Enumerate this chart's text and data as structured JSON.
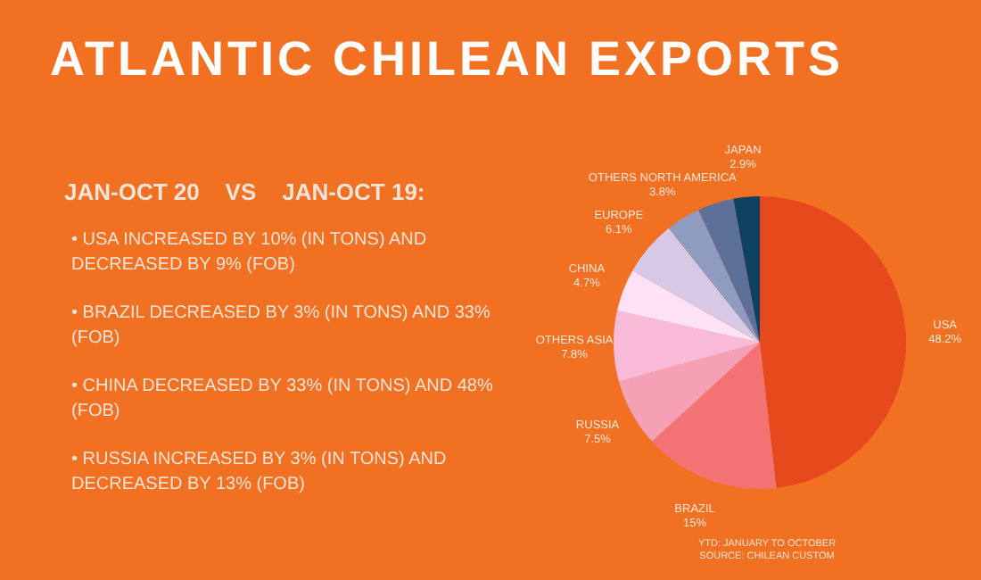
{
  "chart_data": {
    "type": "pie",
    "title": "ATLANTIC CHILEAN EXPORTS",
    "subtitle": "JAN-OCT 20    VS    JAN-OCT 19:",
    "categories": [
      "USA",
      "BRAZIL",
      "RUSSIA",
      "OTHERS ASIA",
      "CHINA",
      "EUROPE",
      "OTHERS NORTH AMERICA",
      null,
      "JAPAN"
    ],
    "values": [
      48.2,
      15,
      7.5,
      7.8,
      4.7,
      6.1,
      3.8,
      4.0,
      2.9
    ],
    "value_labels": [
      "48.2%",
      "15%",
      "7.5%",
      "7.8%",
      "4.7%",
      "6.1%",
      "3.8%",
      null,
      "2.9%"
    ],
    "colors": [
      "#e5491c",
      "#f37374",
      "#f6a0b6",
      "#f9bad7",
      "#fde2f6",
      "#d7c8e6",
      "#8f9bbf",
      "#5d7198",
      "#0e4260"
    ],
    "legend": false,
    "annotations": [
      "• USA INCREASED BY 10% (IN TONS) AND DECREASED BY 9% (FOB)",
      "• BRAZIL DECREASED BY 3% (IN TONS) AND 33% (FOB)",
      "• CHINA DECREASED BY 33% (IN TONS) AND 48% (FOB)",
      "• RUSSIA INCREASED BY 3% (IN TONS) AND DECREASED BY 13% (FOB)",
      "YTD: JANUARY TO OCTOBER",
      "SOURCE: CHILEAN CUSTOM"
    ]
  }
}
